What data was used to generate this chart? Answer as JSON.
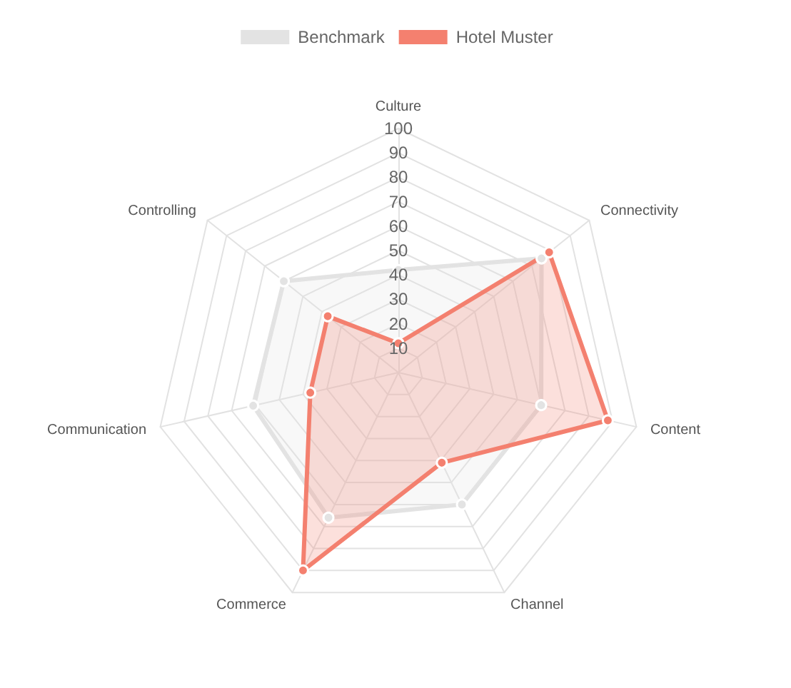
{
  "chart_data": {
    "type": "radar",
    "categories": [
      "Culture",
      "Connectivity",
      "Content",
      "Channel",
      "Commerce",
      "Communication",
      "Controlling"
    ],
    "series": [
      {
        "name": "Benchmark",
        "color": "#e3e3e3",
        "values": [
          42,
          75,
          60,
          60,
          66,
          61,
          60
        ]
      },
      {
        "name": "Hotel Muster",
        "color": "#f4806f",
        "values": [
          12,
          79,
          88,
          41,
          90,
          37,
          37
        ]
      }
    ],
    "ylim": [
      0,
      100
    ],
    "yticks": [
      10,
      20,
      30,
      40,
      50,
      60,
      70,
      80,
      90,
      100
    ],
    "grid": true,
    "legend": "top",
    "marker": "circle"
  }
}
